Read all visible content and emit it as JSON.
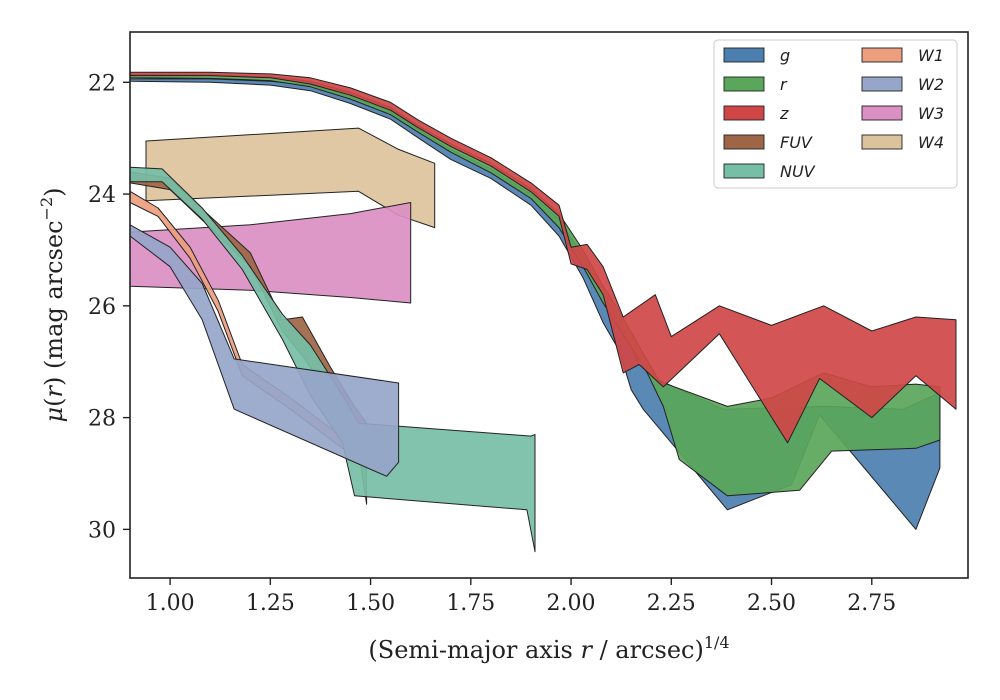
{
  "chart_data": {
    "type": "area",
    "title": "",
    "xlabel": {
      "main": "(Semi-major axis ",
      "var": "r",
      "mid": " / arcsec)",
      "sup": "1/4"
    },
    "ylabel": {
      "mu": "μ",
      "paren_open": "(",
      "var": "r",
      "rest": ") (mag arcsec",
      "sup": "−2",
      "close": ")"
    },
    "xlim": [
      0.9,
      2.99
    ],
    "ylim": [
      30.87,
      21.1
    ],
    "y_inverted": true,
    "xticks": [
      1.0,
      1.25,
      1.5,
      1.75,
      2.0,
      2.25,
      2.5,
      2.75
    ],
    "xtick_labels": [
      "1.00",
      "1.25",
      "1.50",
      "1.75",
      "2.00",
      "2.25",
      "2.50",
      "2.75"
    ],
    "yticks": [
      22,
      24,
      26,
      28,
      30
    ],
    "ytick_labels": [
      "22",
      "24",
      "26",
      "28",
      "30"
    ],
    "legend_position": "top-right",
    "legend_columns": 2,
    "series": [
      {
        "name": "W4",
        "color": "#dcc39b",
        "upper": [
          [
            0.94,
            23.05
          ],
          [
            1.47,
            22.82
          ],
          [
            1.57,
            23.2
          ],
          [
            1.66,
            23.45
          ]
        ],
        "lower": [
          [
            0.94,
            24.12
          ],
          [
            1.47,
            23.95
          ],
          [
            1.57,
            24.38
          ],
          [
            1.66,
            24.6
          ]
        ]
      },
      {
        "name": "W3",
        "color": "#db8fc3",
        "upper": [
          [
            0.9,
            24.68
          ],
          [
            1.2,
            24.55
          ],
          [
            1.45,
            24.35
          ],
          [
            1.6,
            24.15
          ]
        ],
        "lower": [
          [
            0.9,
            25.65
          ],
          [
            1.2,
            25.72
          ],
          [
            1.45,
            25.85
          ],
          [
            1.6,
            25.95
          ]
        ]
      },
      {
        "name": "W1",
        "color": "#ec9e7e",
        "upper": [
          [
            0.9,
            23.95
          ],
          [
            0.97,
            24.25
          ],
          [
            1.05,
            24.95
          ],
          [
            1.12,
            25.9
          ],
          [
            1.18,
            27.05
          ],
          [
            1.3,
            27.65
          ],
          [
            1.43,
            28.35
          ],
          [
            1.49,
            28.6
          ]
        ],
        "lower": [
          [
            0.9,
            24.15
          ],
          [
            0.97,
            24.4
          ],
          [
            1.05,
            25.15
          ],
          [
            1.12,
            26.1
          ],
          [
            1.18,
            27.25
          ],
          [
            1.3,
            27.85
          ],
          [
            1.43,
            28.55
          ],
          [
            1.49,
            28.8
          ]
        ]
      },
      {
        "name": "FUV",
        "color": "#9e6646",
        "upper": [
          [
            0.9,
            23.6
          ],
          [
            1.0,
            23.72
          ],
          [
            1.1,
            24.4
          ],
          [
            1.2,
            25.05
          ],
          [
            1.28,
            26.25
          ],
          [
            1.33,
            26.2
          ],
          [
            1.4,
            27.1
          ],
          [
            1.46,
            27.8
          ],
          [
            1.49,
            28.1
          ]
        ],
        "lower": [
          [
            0.9,
            23.8
          ],
          [
            1.0,
            23.92
          ],
          [
            1.1,
            24.6
          ],
          [
            1.2,
            25.3
          ],
          [
            1.28,
            26.45
          ],
          [
            1.33,
            26.9
          ],
          [
            1.4,
            27.6
          ],
          [
            1.46,
            28.1
          ],
          [
            1.49,
            29.55
          ]
        ]
      },
      {
        "name": "NUV",
        "color": "#76bea6",
        "upper": [
          [
            0.9,
            23.52
          ],
          [
            0.98,
            23.55
          ],
          [
            1.08,
            24.25
          ],
          [
            1.18,
            25.1
          ],
          [
            1.28,
            26.15
          ],
          [
            1.35,
            26.7
          ],
          [
            1.43,
            27.6
          ],
          [
            1.47,
            28.1
          ],
          [
            1.9,
            28.33
          ],
          [
            1.91,
            28.3
          ]
        ],
        "lower": [
          [
            0.9,
            23.78
          ],
          [
            0.98,
            23.78
          ],
          [
            1.08,
            24.45
          ],
          [
            1.18,
            25.35
          ],
          [
            1.28,
            26.6
          ],
          [
            1.35,
            27.6
          ],
          [
            1.43,
            28.45
          ],
          [
            1.46,
            29.4
          ],
          [
            1.89,
            29.65
          ],
          [
            1.91,
            30.4
          ]
        ]
      },
      {
        "name": "W2",
        "color": "#96a5c9",
        "upper": [
          [
            0.9,
            24.55
          ],
          [
            1.0,
            24.95
          ],
          [
            1.08,
            25.6
          ],
          [
            1.16,
            26.95
          ],
          [
            1.57,
            27.38
          ]
        ],
        "lower": [
          [
            0.9,
            24.75
          ],
          [
            1.0,
            25.3
          ],
          [
            1.08,
            26.25
          ],
          [
            1.16,
            27.85
          ],
          [
            1.54,
            29.05
          ],
          [
            1.57,
            28.8
          ]
        ]
      },
      {
        "name": "g",
        "color": "#4c7fb0",
        "upper": [
          [
            0.9,
            21.94
          ],
          [
            1.1,
            21.94
          ],
          [
            1.25,
            21.98
          ],
          [
            1.35,
            22.05
          ],
          [
            1.45,
            22.25
          ],
          [
            1.55,
            22.52
          ],
          [
            1.62,
            22.85
          ],
          [
            1.7,
            23.2
          ],
          [
            1.8,
            23.55
          ],
          [
            1.9,
            24.0
          ],
          [
            1.97,
            24.45
          ],
          [
            2.03,
            25.1
          ],
          [
            2.08,
            25.8
          ],
          [
            2.12,
            26.2
          ],
          [
            2.17,
            27.05
          ],
          [
            2.21,
            27.3
          ],
          [
            2.38,
            27.85
          ],
          [
            2.63,
            27.8
          ],
          [
            2.83,
            27.85
          ],
          [
            2.92,
            27.55
          ]
        ],
        "lower": [
          [
            0.9,
            21.98
          ],
          [
            1.1,
            22.0
          ],
          [
            1.25,
            22.05
          ],
          [
            1.35,
            22.15
          ],
          [
            1.45,
            22.38
          ],
          [
            1.55,
            22.66
          ],
          [
            1.62,
            23.0
          ],
          [
            1.7,
            23.38
          ],
          [
            1.8,
            23.72
          ],
          [
            1.9,
            24.2
          ],
          [
            1.97,
            24.75
          ],
          [
            2.03,
            25.5
          ],
          [
            2.08,
            26.3
          ],
          [
            2.12,
            26.8
          ],
          [
            2.15,
            27.5
          ],
          [
            2.18,
            27.85
          ],
          [
            2.39,
            29.65
          ],
          [
            2.55,
            29.2
          ],
          [
            2.62,
            27.95
          ],
          [
            2.86,
            30.0
          ],
          [
            2.92,
            28.9
          ]
        ]
      },
      {
        "name": "r",
        "color": "#5aa65a",
        "upper": [
          [
            0.9,
            21.86
          ],
          [
            1.1,
            21.87
          ],
          [
            1.25,
            21.9
          ],
          [
            1.35,
            21.98
          ],
          [
            1.45,
            22.18
          ],
          [
            1.55,
            22.45
          ],
          [
            1.62,
            22.78
          ],
          [
            1.7,
            23.1
          ],
          [
            1.8,
            23.45
          ],
          [
            1.9,
            23.9
          ],
          [
            1.97,
            24.35
          ],
          [
            2.03,
            25.0
          ],
          [
            2.08,
            25.65
          ],
          [
            2.12,
            26.1
          ],
          [
            2.18,
            26.85
          ],
          [
            2.22,
            27.35
          ],
          [
            2.39,
            27.8
          ],
          [
            2.5,
            27.65
          ],
          [
            2.63,
            27.2
          ],
          [
            2.75,
            27.45
          ],
          [
            2.86,
            27.4
          ],
          [
            2.92,
            27.45
          ]
        ],
        "lower": [
          [
            0.9,
            21.92
          ],
          [
            1.1,
            21.93
          ],
          [
            1.25,
            21.97
          ],
          [
            1.35,
            22.08
          ],
          [
            1.45,
            22.3
          ],
          [
            1.55,
            22.58
          ],
          [
            1.62,
            22.9
          ],
          [
            1.7,
            23.25
          ],
          [
            1.8,
            23.62
          ],
          [
            1.9,
            24.08
          ],
          [
            1.97,
            24.6
          ],
          [
            2.03,
            25.3
          ],
          [
            2.08,
            25.95
          ],
          [
            2.12,
            26.4
          ],
          [
            2.19,
            27.2
          ],
          [
            2.23,
            27.8
          ],
          [
            2.27,
            28.75
          ],
          [
            2.39,
            29.4
          ],
          [
            2.57,
            29.3
          ],
          [
            2.65,
            28.6
          ],
          [
            2.86,
            28.55
          ],
          [
            2.92,
            28.4
          ]
        ]
      },
      {
        "name": "z",
        "color": "#d04646",
        "upper": [
          [
            0.9,
            21.82
          ],
          [
            1.1,
            21.82
          ],
          [
            1.25,
            21.85
          ],
          [
            1.35,
            21.92
          ],
          [
            1.45,
            22.1
          ],
          [
            1.55,
            22.36
          ],
          [
            1.62,
            22.68
          ],
          [
            1.7,
            23.0
          ],
          [
            1.8,
            23.35
          ],
          [
            1.9,
            23.8
          ],
          [
            1.97,
            24.2
          ],
          [
            2.0,
            24.95
          ],
          [
            2.04,
            24.9
          ],
          [
            2.08,
            25.3
          ],
          [
            2.13,
            26.2
          ],
          [
            2.21,
            25.8
          ],
          [
            2.25,
            26.55
          ],
          [
            2.37,
            26.0
          ],
          [
            2.5,
            26.35
          ],
          [
            2.63,
            26.0
          ],
          [
            2.75,
            26.45
          ],
          [
            2.86,
            26.2
          ],
          [
            2.96,
            26.25
          ]
        ],
        "lower": [
          [
            0.9,
            21.88
          ],
          [
            1.1,
            21.88
          ],
          [
            1.25,
            21.92
          ],
          [
            1.35,
            22.03
          ],
          [
            1.45,
            22.23
          ],
          [
            1.55,
            22.5
          ],
          [
            1.62,
            22.82
          ],
          [
            1.7,
            23.15
          ],
          [
            1.8,
            23.5
          ],
          [
            1.9,
            23.96
          ],
          [
            1.97,
            24.4
          ],
          [
            2.0,
            25.25
          ],
          [
            2.04,
            25.35
          ],
          [
            2.08,
            25.8
          ],
          [
            2.13,
            27.2
          ],
          [
            2.17,
            27.05
          ],
          [
            2.23,
            27.45
          ],
          [
            2.37,
            26.5
          ],
          [
            2.54,
            28.45
          ],
          [
            2.62,
            27.3
          ],
          [
            2.75,
            28.0
          ],
          [
            2.86,
            27.25
          ],
          [
            2.96,
            27.85
          ]
        ]
      }
    ]
  }
}
